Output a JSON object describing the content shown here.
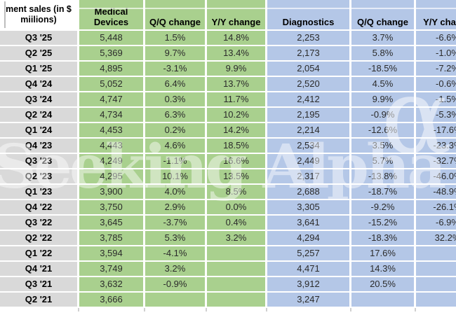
{
  "table": {
    "header": {
      "row_label": "ment sales (in $ miilions)",
      "col_medical_devices": "Medical Devices",
      "col_md_qq": "Q/Q change",
      "col_md_yy": "Y/Y change",
      "col_diagnostics": "Diagnostics",
      "col_dx_qq": "Q/Q change",
      "col_dx_yy": "Y/Y change"
    },
    "rows": [
      {
        "quarter": "Q3 '25",
        "md": "5,448",
        "md_qq": "1.5%",
        "md_yy": "14.8%",
        "dx": "2,253",
        "dx_qq": "3.7%",
        "dx_yy": "-6.6%"
      },
      {
        "quarter": "Q2 '25",
        "md": "5,369",
        "md_qq": "9.7%",
        "md_yy": "13.4%",
        "dx": "2,173",
        "dx_qq": "5.8%",
        "dx_yy": "-1.0%"
      },
      {
        "quarter": "Q1 '25",
        "md": "4,895",
        "md_qq": "-3.1%",
        "md_yy": "9.9%",
        "dx": "2,054",
        "dx_qq": "-18.5%",
        "dx_yy": "-7.2%"
      },
      {
        "quarter": "Q4 '24",
        "md": "5,052",
        "md_qq": "6.4%",
        "md_yy": "13.7%",
        "dx": "2,520",
        "dx_qq": "4.5%",
        "dx_yy": "-0.6%"
      },
      {
        "quarter": "Q3 '24",
        "md": "4,747",
        "md_qq": "0.3%",
        "md_yy": "11.7%",
        "dx": "2,412",
        "dx_qq": "9.9%",
        "dx_yy": "-1.5%"
      },
      {
        "quarter": "Q2 '24",
        "md": "4,734",
        "md_qq": "6.3%",
        "md_yy": "10.2%",
        "dx": "2,195",
        "dx_qq": "-0.9%",
        "dx_yy": "-5.3%"
      },
      {
        "quarter": "Q1 '24",
        "md": "4,453",
        "md_qq": "0.2%",
        "md_yy": "14.2%",
        "dx": "2,214",
        "dx_qq": "-12.6%",
        "dx_yy": "-17.6%"
      },
      {
        "quarter": "Q4 '23",
        "md": "4,443",
        "md_qq": "4.6%",
        "md_yy": "18.5%",
        "dx": "2,534",
        "dx_qq": "3.5%",
        "dx_yy": "-23.3%"
      },
      {
        "quarter": "Q3 '23",
        "md": "4,249",
        "md_qq": "-1.1%",
        "md_yy": "16.6%",
        "dx": "2,449",
        "dx_qq": "5.7%",
        "dx_yy": "-32.7%"
      },
      {
        "quarter": "Q2 '23",
        "md": "4,295",
        "md_qq": "10.1%",
        "md_yy": "13.5%",
        "dx": "2,317",
        "dx_qq": "-13.8%",
        "dx_yy": "-46.0%"
      },
      {
        "quarter": "Q1 '23",
        "md": "3,900",
        "md_qq": "4.0%",
        "md_yy": "8.5%",
        "dx": "2,688",
        "dx_qq": "-18.7%",
        "dx_yy": "-48.9%"
      },
      {
        "quarter": "Q4 '22",
        "md": "3,750",
        "md_qq": "2.9%",
        "md_yy": "0.0%",
        "dx": "3,305",
        "dx_qq": "-9.2%",
        "dx_yy": "-26.1%"
      },
      {
        "quarter": "Q3 '22",
        "md": "3,645",
        "md_qq": "-3.7%",
        "md_yy": "0.4%",
        "dx": "3,641",
        "dx_qq": "-15.2%",
        "dx_yy": "-6.9%"
      },
      {
        "quarter": "Q2 '22",
        "md": "3,785",
        "md_qq": "5.3%",
        "md_yy": "3.2%",
        "dx": "4,294",
        "dx_qq": "-18.3%",
        "dx_yy": "32.2%"
      },
      {
        "quarter": "Q1 '22",
        "md": "3,594",
        "md_qq": "-4.1%",
        "md_yy": "",
        "dx": "5,257",
        "dx_qq": "17.6%",
        "dx_yy": ""
      },
      {
        "quarter": "Q4 '21",
        "md": "3,749",
        "md_qq": "3.2%",
        "md_yy": "",
        "dx": "4,471",
        "dx_qq": "14.3%",
        "dx_yy": ""
      },
      {
        "quarter": "Q3 '21",
        "md": "3,632",
        "md_qq": "-0.9%",
        "md_yy": "",
        "dx": "3,912",
        "dx_qq": "20.5%",
        "dx_yy": ""
      },
      {
        "quarter": "Q2 '21",
        "md": "3,666",
        "md_qq": "",
        "md_yy": "",
        "dx": "3,247",
        "dx_qq": "",
        "dx_yy": ""
      }
    ]
  },
  "watermark": {
    "text": "Seeking Alpha",
    "alpha_symbol": "α"
  },
  "colors": {
    "medical_devices_green": "#a9d08e",
    "diagnostics_blue": "#b4c7e7",
    "row_label_gray": "#d9d9d9"
  }
}
